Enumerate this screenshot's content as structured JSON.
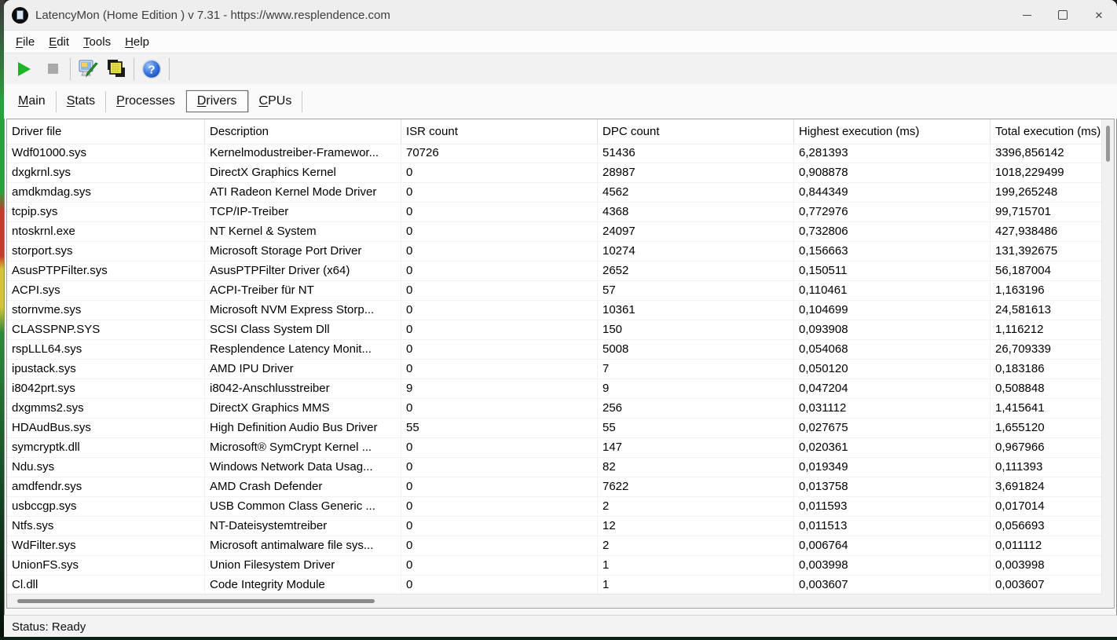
{
  "window": {
    "title": "LatencyMon  (Home Edition )  v 7.31 - https://www.resplendence.com",
    "close_icon": "✕"
  },
  "menu": {
    "items": [
      {
        "label": "File"
      },
      {
        "label": "Edit"
      },
      {
        "label": "Tools"
      },
      {
        "label": "Help"
      }
    ]
  },
  "toolbar": {
    "buttons": [
      {
        "name": "start-monitor",
        "icon": "play-icon"
      },
      {
        "name": "stop-monitor",
        "icon": "stop-icon"
      },
      {
        "name": "options",
        "icon": "monitor-tools-icon"
      },
      {
        "name": "report",
        "icon": "report-pages-icon"
      },
      {
        "name": "help",
        "icon": "help-question-icon"
      }
    ]
  },
  "tabs": [
    {
      "label": "Main",
      "selected": false
    },
    {
      "label": "Stats",
      "selected": false
    },
    {
      "label": "Processes",
      "selected": false
    },
    {
      "label": "Drivers",
      "selected": true
    },
    {
      "label": "CPUs",
      "selected": false
    }
  ],
  "table": {
    "columns": [
      "Driver file",
      "Description",
      "ISR count",
      "DPC count",
      "Highest execution (ms)",
      "Total execution (ms)"
    ],
    "rows": [
      [
        "Wdf01000.sys",
        "Kernelmodustreiber-Framewor...",
        "70726",
        "51436",
        "6,281393",
        "3396,856142"
      ],
      [
        "dxgkrnl.sys",
        "DirectX Graphics Kernel",
        "0",
        "28987",
        "0,908878",
        "1018,229499"
      ],
      [
        "amdkmdag.sys",
        "ATI Radeon Kernel Mode Driver",
        "0",
        "4562",
        "0,844349",
        "199,265248"
      ],
      [
        "tcpip.sys",
        "TCP/IP-Treiber",
        "0",
        "4368",
        "0,772976",
        "99,715701"
      ],
      [
        "ntoskrnl.exe",
        "NT Kernel & System",
        "0",
        "24097",
        "0,732806",
        "427,938486"
      ],
      [
        "storport.sys",
        "Microsoft Storage Port Driver",
        "0",
        "10274",
        "0,156663",
        "131,392675"
      ],
      [
        "AsusPTPFilter.sys",
        "AsusPTPFilter Driver (x64)",
        "0",
        "2652",
        "0,150511",
        "56,187004"
      ],
      [
        "ACPI.sys",
        "ACPI-Treiber für NT",
        "0",
        "57",
        "0,110461",
        "1,163196"
      ],
      [
        "stornvme.sys",
        "Microsoft NVM Express Storp...",
        "0",
        "10361",
        "0,104699",
        "24,581613"
      ],
      [
        "CLASSPNP.SYS",
        "SCSI Class System Dll",
        "0",
        "150",
        "0,093908",
        "1,116212"
      ],
      [
        "rspLLL64.sys",
        "Resplendence Latency Monit...",
        "0",
        "5008",
        "0,054068",
        "26,709339"
      ],
      [
        "ipustack.sys",
        "AMD IPU Driver",
        "0",
        "7",
        "0,050120",
        "0,183186"
      ],
      [
        "i8042prt.sys",
        "i8042-Anschlusstreiber",
        "9",
        "9",
        "0,047204",
        "0,508848"
      ],
      [
        "dxgmms2.sys",
        "DirectX Graphics MMS",
        "0",
        "256",
        "0,031112",
        "1,415641"
      ],
      [
        "HDAudBus.sys",
        "High Definition Audio Bus Driver",
        "55",
        "55",
        "0,027675",
        "1,655120"
      ],
      [
        "symcryptk.dll",
        "Microsoft® SymCrypt Kernel ...",
        "0",
        "147",
        "0,020361",
        "0,967966"
      ],
      [
        "Ndu.sys",
        "Windows Network Data Usag...",
        "0",
        "82",
        "0,019349",
        "0,111393"
      ],
      [
        "amdfendr.sys",
        "AMD Crash Defender",
        "0",
        "7622",
        "0,013758",
        "3,691824"
      ],
      [
        "usbccgp.sys",
        "USB Common Class Generic ...",
        "0",
        "2",
        "0,011593",
        "0,017014"
      ],
      [
        "Ntfs.sys",
        "NT-Dateisystemtreiber",
        "0",
        "12",
        "0,011513",
        "0,056693"
      ],
      [
        "WdFilter.sys",
        "Microsoft antimalware file sys...",
        "0",
        "2",
        "0,006764",
        "0,011112"
      ],
      [
        "UnionFS.sys",
        "Union Filesystem Driver",
        "0",
        "1",
        "0,003998",
        "0,003998"
      ],
      [
        "Cl.dll",
        "Code Integrity Module",
        "0",
        "1",
        "0,003607",
        "0,003607"
      ]
    ]
  },
  "status_bar": {
    "text": "Status: Ready"
  }
}
